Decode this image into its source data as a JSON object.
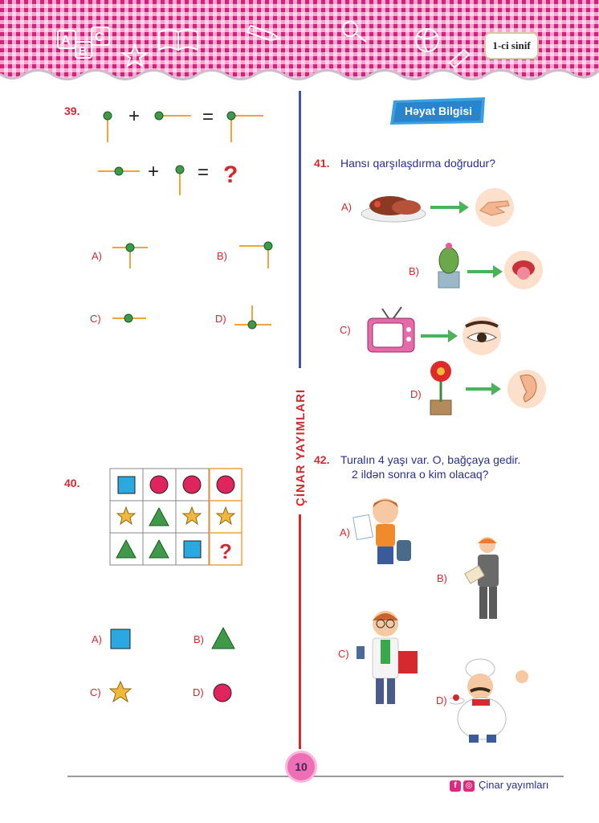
{
  "header": {
    "grade": "1-ci sinif"
  },
  "subject_badge": "Həyat Bilgisi",
  "brand_vertical": "ÇİNAR YAYIMLARI",
  "q39": {
    "number": "39.",
    "plus": "+",
    "equals": "=",
    "question_mark": "?",
    "options": [
      "A)",
      "B)",
      "C)",
      "D)"
    ]
  },
  "q40": {
    "number": "40.",
    "grid": [
      [
        "blue-square",
        "red-circle",
        "red-circle",
        "red-circle"
      ],
      [
        "yellow-star",
        "green-triangle",
        "yellow-star",
        "yellow-star"
      ],
      [
        "green-triangle",
        "green-triangle",
        "blue-square",
        "?"
      ]
    ],
    "question_mark": "?",
    "options": [
      {
        "label": "A)",
        "shape": "blue-square"
      },
      {
        "label": "B)",
        "shape": "green-triangle"
      },
      {
        "label": "C)",
        "shape": "yellow-star"
      },
      {
        "label": "D)",
        "shape": "red-circle"
      }
    ]
  },
  "q41": {
    "number": "41.",
    "text": "Hansı qarşılaşdırma doğrudur?",
    "options": [
      {
        "label": "A)",
        "item": "meat-plate",
        "sense": "hand"
      },
      {
        "label": "B)",
        "item": "cactus",
        "sense": "tongue"
      },
      {
        "label": "C)",
        "item": "television",
        "sense": "eye"
      },
      {
        "label": "D)",
        "item": "flower",
        "sense": "ear"
      }
    ]
  },
  "q42": {
    "number": "42.",
    "text_line1": "Turalın 4 yaşı var. O, bağçaya gedir.",
    "text_line2": "2 ildən sonra o kim  olacaq?",
    "options": [
      {
        "label": "A)",
        "figure": "schoolboy"
      },
      {
        "label": "B)",
        "figure": "architect"
      },
      {
        "label": "C)",
        "figure": "teacher"
      },
      {
        "label": "D)",
        "figure": "chef"
      }
    ]
  },
  "footer": {
    "page_number": "10",
    "brand_text": "Çinar yayımları",
    "facebook": "f",
    "instagram": "◎"
  },
  "colors": {
    "question_red": "#d42a2f",
    "text_blue": "#2a2f8f",
    "header_pink": "#e0287e",
    "square_blue": "#2aa8e0",
    "circle_red": "#e0245e",
    "triangle_green": "#3e9a48",
    "star_yellow": "#f2b83a"
  }
}
